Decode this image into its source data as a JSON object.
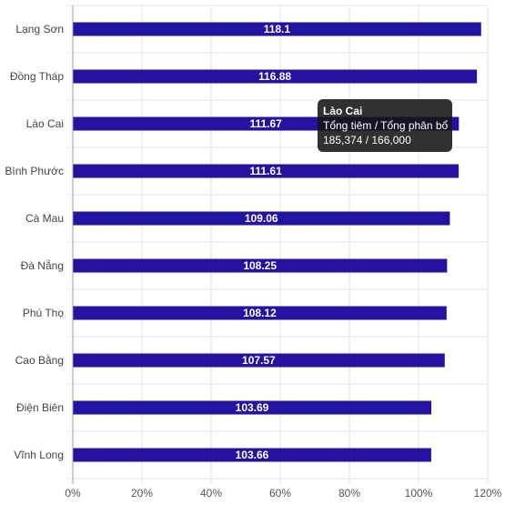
{
  "chart_data": {
    "type": "bar",
    "orientation": "horizontal",
    "categories": [
      "Lạng Sơn",
      "Đồng Tháp",
      "Lào Cai",
      "Bình Phước",
      "Cà Mau",
      "Đà Nẵng",
      "Phú Thọ",
      "Cao Bằng",
      "Điện Biên",
      "Vĩnh Long"
    ],
    "values": [
      118.1,
      116.88,
      111.67,
      111.61,
      109.06,
      108.25,
      108.12,
      107.57,
      103.69,
      103.66
    ],
    "value_labels": [
      "118.1",
      "116.88",
      "111.67",
      "111.61",
      "109.06",
      "108.25",
      "108.12",
      "107.57",
      "103.69",
      "103.66"
    ],
    "xlim": [
      0,
      120
    ],
    "x_ticks": [
      "0%",
      "20%",
      "40%",
      "60%",
      "80%",
      "100%",
      "120%"
    ],
    "grid": true,
    "bar_color": "#2313a0",
    "title": "",
    "xlabel": "",
    "ylabel": ""
  },
  "tooltip": {
    "title": "Lào Cai",
    "line1": "Tổng tiêm / Tổng phân bổ",
    "line2": "185,374 / 166,000"
  }
}
